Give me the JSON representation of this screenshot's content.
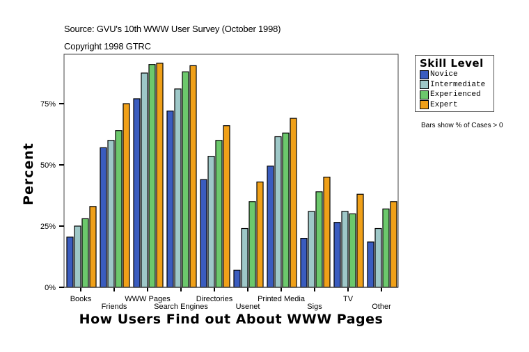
{
  "header": {
    "source": "Source: GVU's 10th WWW User Survey (October 1998)",
    "copyright": "Copyright 1998 GTRC"
  },
  "legend": {
    "title": "Skill Level",
    "items": [
      {
        "label": "Novice",
        "color": "#3a5cbf"
      },
      {
        "label": "Intermediate",
        "color": "#9ec8c8"
      },
      {
        "label": "Experienced",
        "color": "#6cc86c"
      },
      {
        "label": "Expert",
        "color": "#f0a018"
      }
    ]
  },
  "note": "Bars show % of Cases > 0",
  "chart_data": {
    "type": "bar",
    "title": "",
    "xlabel": "How Users Find out About WWW Pages",
    "ylabel": "Percent",
    "ylim": [
      0,
      100
    ],
    "yticks": [
      "0%",
      "25%",
      "50%",
      "75%"
    ],
    "grid": false,
    "legend_position": "right",
    "categories": [
      "Books",
      "Friends",
      "WWW Pages",
      "Search Engines",
      "Directories",
      "Usenet",
      "Printed Media",
      "Sigs",
      "TV",
      "Other"
    ],
    "series": [
      {
        "name": "Novice",
        "values": [
          20.5,
          57,
          77,
          72,
          44,
          7,
          49.5,
          20,
          26.5,
          18.5
        ]
      },
      {
        "name": "Intermediate",
        "values": [
          25,
          60,
          87.5,
          81,
          53.5,
          24,
          61.5,
          31,
          31,
          24
        ]
      },
      {
        "name": "Experienced",
        "values": [
          28,
          64,
          91,
          88,
          60,
          35,
          63,
          39,
          30,
          32
        ]
      },
      {
        "name": "Expert",
        "values": [
          33,
          75,
          91.5,
          90.5,
          66,
          43,
          69,
          45,
          38,
          35
        ]
      }
    ]
  }
}
